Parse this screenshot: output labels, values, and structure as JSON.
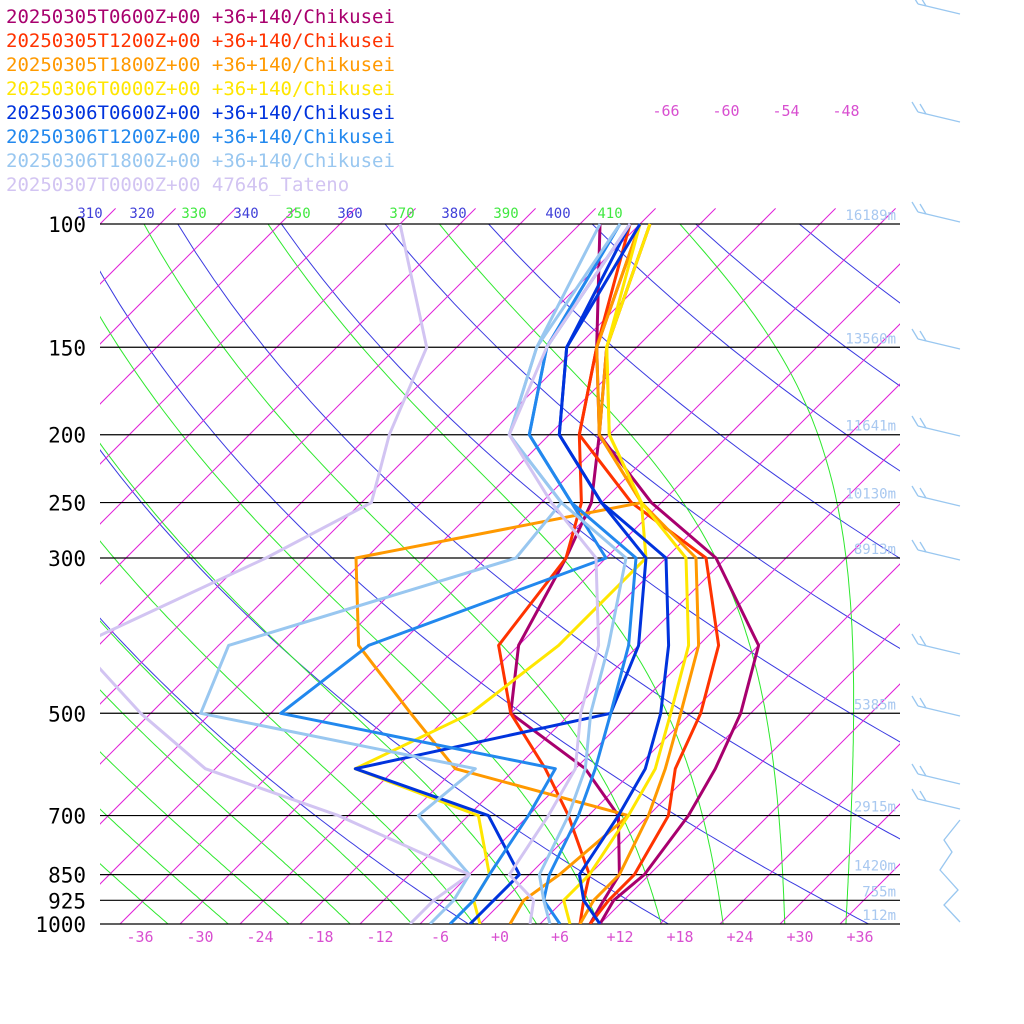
{
  "chart_data": {
    "type": "line",
    "title": "",
    "xlabel": "",
    "ylabel": "",
    "ylim": [
      1000,
      100
    ],
    "xlim": [
      -40,
      40
    ],
    "pressure_levels": [
      100,
      150,
      200,
      250,
      300,
      500,
      700,
      850,
      925,
      1000
    ],
    "temperature_ticks": [
      -36,
      -30,
      -24,
      -18,
      -12,
      -6,
      0,
      6,
      12,
      18,
      24,
      30,
      36
    ],
    "temperature_tick_labels": [
      "-36",
      "-30",
      "-24",
      "-18",
      "-12",
      "-6",
      "+0",
      "+6",
      "+12",
      "+18",
      "+24",
      "+30",
      "+36"
    ],
    "top_isotherm_labels": [
      "-66",
      "-60",
      "-54",
      "-48"
    ],
    "theta_labels": [
      {
        "text": "310",
        "kind": "dry"
      },
      {
        "text": "320",
        "kind": "dry"
      },
      {
        "text": "330",
        "kind": "moist"
      },
      {
        "text": "340",
        "kind": "dry"
      },
      {
        "text": "350",
        "kind": "moist"
      },
      {
        "text": "360",
        "kind": "dry"
      },
      {
        "text": "370",
        "kind": "moist"
      },
      {
        "text": "380",
        "kind": "dry"
      },
      {
        "text": "390",
        "kind": "moist"
      },
      {
        "text": "400",
        "kind": "dry"
      },
      {
        "text": "410",
        "kind": "moist"
      }
    ],
    "height_labels": [
      {
        "p": 100,
        "text": "16189m"
      },
      {
        "p": 150,
        "text": "13560m"
      },
      {
        "p": 200,
        "text": "11641m"
      },
      {
        "p": 250,
        "text": "10130m"
      },
      {
        "p": 300,
        "text": "8913m"
      },
      {
        "p": 500,
        "text": "5385m"
      },
      {
        "p": 700,
        "text": "2915m"
      },
      {
        "p": 850,
        "text": "1420m"
      },
      {
        "p": 925,
        "text": "755m"
      },
      {
        "p": 1000,
        "text": "112m"
      }
    ],
    "series": [
      {
        "name": "20250305T0600Z+00 +36+140/Chikusei",
        "color": "#a8006e",
        "temperature": [
          [
            1000,
            10
          ],
          [
            925,
            9
          ],
          [
            850,
            9.5
          ],
          [
            700,
            8
          ],
          [
            600,
            6
          ],
          [
            500,
            3
          ],
          [
            400,
            -2
          ],
          [
            300,
            -15
          ],
          [
            250,
            -27
          ],
          [
            200,
            -39
          ],
          [
            150,
            -47
          ],
          [
            100,
            -55
          ]
        ],
        "dewpoint": [
          [
            1000,
            9
          ],
          [
            925,
            8
          ],
          [
            850,
            7
          ],
          [
            700,
            1
          ],
          [
            600,
            -7
          ],
          [
            500,
            -20
          ],
          [
            400,
            -26
          ],
          [
            300,
            -30
          ],
          [
            250,
            -33
          ],
          [
            200,
            -39
          ],
          [
            150,
            -48
          ],
          [
            100,
            -60
          ]
        ]
      },
      {
        "name": "20250305T1200Z+00 +36+140/Chikusei",
        "color": "#ff3300",
        "temperature": [
          [
            1000,
            9
          ],
          [
            925,
            8.5
          ],
          [
            850,
            8.5
          ],
          [
            700,
            6
          ],
          [
            600,
            2
          ],
          [
            500,
            -1
          ],
          [
            400,
            -6
          ],
          [
            300,
            -16
          ],
          [
            250,
            -29
          ],
          [
            200,
            -41
          ],
          [
            150,
            -48
          ],
          [
            100,
            -56
          ]
        ],
        "dewpoint": [
          [
            1000,
            8
          ],
          [
            925,
            6
          ],
          [
            850,
            4
          ],
          [
            700,
            -4
          ],
          [
            600,
            -11
          ],
          [
            500,
            -20
          ],
          [
            400,
            -28
          ],
          [
            300,
            -30
          ],
          [
            250,
            -34
          ],
          [
            200,
            -41
          ],
          [
            150,
            -48
          ],
          [
            100,
            -57
          ]
        ]
      },
      {
        "name": "20250305T1800Z+00 +36+140/Chikusei",
        "color": "#ff9900",
        "temperature": [
          [
            1000,
            8
          ],
          [
            925,
            7
          ],
          [
            850,
            7
          ],
          [
            700,
            4
          ],
          [
            600,
            1
          ],
          [
            500,
            -3
          ],
          [
            400,
            -8
          ],
          [
            300,
            -17
          ],
          [
            250,
            -28
          ],
          [
            200,
            -39
          ],
          [
            150,
            -47
          ],
          [
            100,
            -55
          ]
        ],
        "dewpoint": [
          [
            1000,
            1
          ],
          [
            925,
            0
          ],
          [
            850,
            1
          ],
          [
            700,
            2
          ],
          [
            600,
            -20
          ],
          [
            500,
            -30
          ],
          [
            400,
            -42
          ],
          [
            300,
            -51
          ],
          [
            250,
            -28
          ],
          [
            200,
            -39
          ],
          [
            150,
            -48
          ],
          [
            100,
            -56
          ]
        ]
      },
      {
        "name": "20250306T0000Z+00 +36+140/Chikusei",
        "color": "#ffe600",
        "temperature": [
          [
            1000,
            7
          ],
          [
            925,
            4
          ],
          [
            850,
            4
          ],
          [
            700,
            2
          ],
          [
            600,
            0
          ],
          [
            500,
            -4
          ],
          [
            400,
            -9
          ],
          [
            300,
            -18
          ],
          [
            250,
            -28
          ],
          [
            200,
            -38
          ],
          [
            150,
            -47
          ],
          [
            100,
            -55
          ]
        ],
        "dewpoint": [
          [
            1000,
            -2
          ],
          [
            925,
            -5
          ],
          [
            850,
            -6
          ],
          [
            700,
            -13
          ],
          [
            600,
            -30
          ],
          [
            500,
            -24
          ],
          [
            400,
            -22
          ],
          [
            300,
            -22
          ],
          [
            250,
            -28
          ],
          [
            200,
            -38
          ],
          [
            150,
            -47
          ],
          [
            100,
            -56
          ]
        ]
      },
      {
        "name": "20250306T0600Z+00 +36+140/Chikusei",
        "color": "#0033dd",
        "temperature": [
          [
            1000,
            10
          ],
          [
            925,
            6
          ],
          [
            850,
            3
          ],
          [
            700,
            1
          ],
          [
            600,
            -1
          ],
          [
            500,
            -5
          ],
          [
            400,
            -11
          ],
          [
            300,
            -20
          ],
          [
            250,
            -32
          ],
          [
            200,
            -43
          ],
          [
            150,
            -51
          ],
          [
            100,
            -56
          ]
        ],
        "dewpoint": [
          [
            1000,
            -3
          ],
          [
            925,
            -3
          ],
          [
            850,
            -3
          ],
          [
            700,
            -12
          ],
          [
            600,
            -30
          ],
          [
            500,
            -10
          ],
          [
            400,
            -14
          ],
          [
            300,
            -22
          ],
          [
            250,
            -32
          ],
          [
            200,
            -43
          ],
          [
            150,
            -51
          ],
          [
            100,
            -57
          ]
        ]
      },
      {
        "name": "20250306T1200Z+00 +36+140/Chikusei",
        "color": "#2288ee",
        "temperature": [
          [
            1000,
            6
          ],
          [
            925,
            2
          ],
          [
            850,
            0
          ],
          [
            700,
            -3
          ],
          [
            600,
            -6
          ],
          [
            500,
            -10
          ],
          [
            400,
            -15
          ],
          [
            300,
            -23
          ],
          [
            250,
            -35
          ],
          [
            200,
            -46
          ],
          [
            150,
            -53
          ],
          [
            100,
            -57
          ]
        ],
        "dewpoint": [
          [
            1000,
            -5
          ],
          [
            925,
            -5
          ],
          [
            850,
            -6
          ],
          [
            700,
            -8
          ],
          [
            600,
            -10
          ],
          [
            500,
            -43
          ],
          [
            400,
            -41
          ],
          [
            300,
            -26
          ],
          [
            250,
            -35
          ],
          [
            200,
            -46
          ],
          [
            150,
            -53
          ],
          [
            100,
            -58
          ]
        ]
      },
      {
        "name": "20250306T1800Z+00 +36+140/Chikusei",
        "color": "#99c7f0",
        "temperature": [
          [
            1000,
            5
          ],
          [
            925,
            2
          ],
          [
            850,
            -1
          ],
          [
            700,
            -4
          ],
          [
            600,
            -7
          ],
          [
            500,
            -12
          ],
          [
            400,
            -17
          ],
          [
            300,
            -24
          ],
          [
            250,
            -36
          ],
          [
            200,
            -48
          ],
          [
            150,
            -54
          ],
          [
            100,
            -58
          ]
        ],
        "dewpoint": [
          [
            1000,
            -7
          ],
          [
            925,
            -7
          ],
          [
            850,
            -8
          ],
          [
            700,
            -19
          ],
          [
            600,
            -18
          ],
          [
            500,
            -51
          ],
          [
            400,
            -55
          ],
          [
            300,
            -35
          ],
          [
            250,
            -36
          ],
          [
            200,
            -48
          ],
          [
            150,
            -54
          ],
          [
            100,
            -60
          ]
        ]
      },
      {
        "name": "20250307T0000Z+00 47646_Tateno",
        "color": "#d2c4f2",
        "temperature": [
          [
            1000,
            3
          ],
          [
            925,
            1
          ],
          [
            850,
            -4
          ],
          [
            700,
            -6
          ],
          [
            600,
            -8
          ],
          [
            500,
            -13
          ],
          [
            400,
            -18
          ],
          [
            300,
            -27
          ],
          [
            250,
            -37
          ],
          [
            200,
            -48
          ],
          [
            150,
            -53
          ],
          [
            100,
            -57
          ]
        ],
        "dewpoint": [
          [
            1000,
            -9
          ],
          [
            925,
            -9
          ],
          [
            850,
            -8
          ],
          [
            700,
            -27
          ],
          [
            600,
            -45
          ],
          [
            500,
            -57
          ],
          [
            400,
            -70
          ],
          [
            300,
            -60
          ],
          [
            250,
            -55
          ],
          [
            200,
            -60
          ],
          [
            150,
            -65
          ],
          [
            100,
            -80
          ]
        ]
      }
    ]
  }
}
